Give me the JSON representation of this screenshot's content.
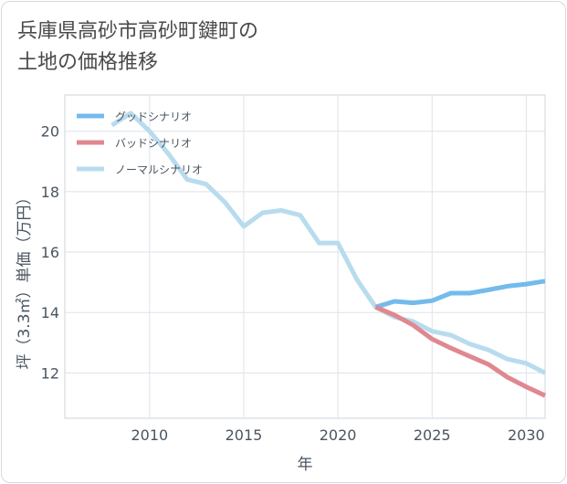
{
  "title_line1": "兵庫県高砂市高砂町鍵町の",
  "title_line2": "土地の価格推移",
  "chart_data": {
    "type": "line",
    "xlabel": "年",
    "ylabel": "坪（3.3㎡）単価（万円）",
    "xlim": [
      2005.5,
      2031
    ],
    "ylim": [
      10.5,
      21.2
    ],
    "xticks": [
      2010,
      2015,
      2020,
      2025,
      2030
    ],
    "yticks": [
      12,
      14,
      16,
      18,
      20
    ],
    "grid": true,
    "legend_position": "top-left",
    "series": [
      {
        "name": "グッドシナリオ",
        "color": "#74bbec",
        "x": [
          2022,
          2023,
          2024,
          2025,
          2026,
          2027,
          2028,
          2029,
          2030,
          2031
        ],
        "y": [
          14.18,
          14.37,
          14.32,
          14.39,
          14.64,
          14.64,
          14.75,
          14.87,
          14.94,
          15.04
        ]
      },
      {
        "name": "バッドシナリオ",
        "color": "#df8890",
        "x": [
          2022,
          2023,
          2024,
          2025,
          2026,
          2027,
          2028,
          2029,
          2030,
          2031
        ],
        "y": [
          14.18,
          13.92,
          13.58,
          13.12,
          12.82,
          12.55,
          12.28,
          11.86,
          11.54,
          11.25
        ]
      },
      {
        "name": "ノーマルシナリオ",
        "color": "#b8dcee",
        "x": [
          2008,
          2009,
          2010,
          2011,
          2012,
          2013,
          2014,
          2015,
          2016,
          2017,
          2018,
          2019,
          2020,
          2021,
          2022,
          2023,
          2024,
          2025,
          2026,
          2027,
          2028,
          2029,
          2030,
          2031
        ],
        "y": [
          20.2,
          20.6,
          20.0,
          19.25,
          18.4,
          18.25,
          17.65,
          16.85,
          17.3,
          17.38,
          17.22,
          16.3,
          16.3,
          15.1,
          14.18,
          13.85,
          13.7,
          13.38,
          13.25,
          12.96,
          12.76,
          12.46,
          12.32,
          12.0
        ]
      }
    ]
  }
}
